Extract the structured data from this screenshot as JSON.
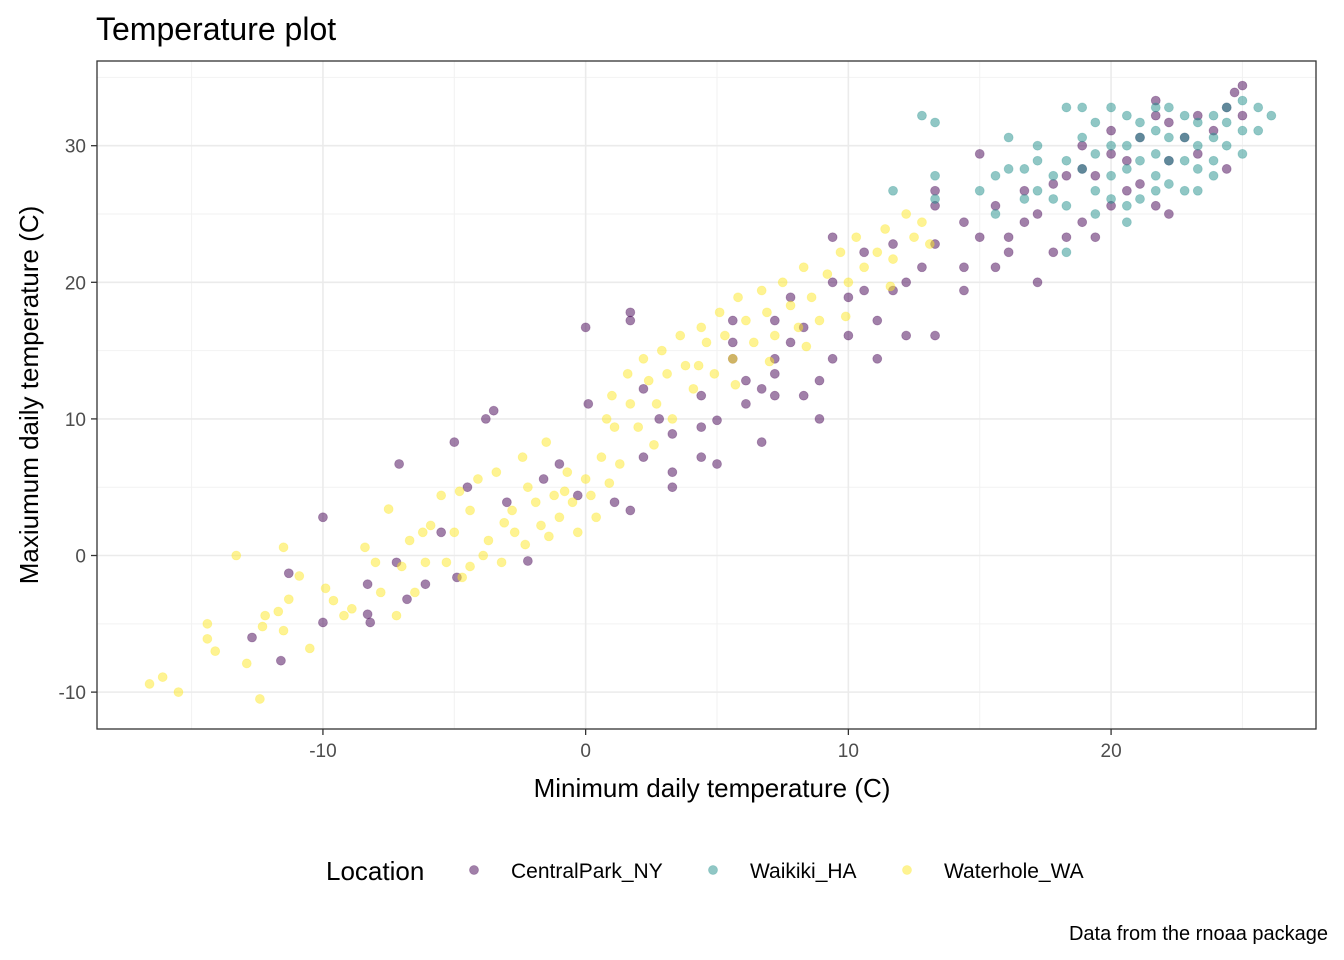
{
  "chart_data": {
    "type": "scatter",
    "title": "Temperature plot",
    "xlabel": "Minimum daily temperature (C)",
    "ylabel": "Maxiumum daily temperature (C)",
    "caption": "Data from the rnoaa package",
    "xlim": [
      -18.6,
      27.8
    ],
    "ylim": [
      -12.7,
      36.2
    ],
    "x_ticks": [
      -10,
      0,
      10,
      20
    ],
    "y_ticks": [
      -10,
      0,
      10,
      20,
      30
    ],
    "x_tick_labels": [
      "-10",
      "0",
      "10",
      "20"
    ],
    "y_tick_labels": [
      "-10",
      "0",
      "10",
      "20",
      "30"
    ],
    "grid": true,
    "point_alpha": 0.5,
    "legend": {
      "title": "Location",
      "position": "bottom"
    },
    "series": [
      {
        "name": "CentralPark_NY",
        "color": "#440154",
        "points": [
          [
            -12.7,
            -6.0
          ],
          [
            -11.6,
            -7.7
          ],
          [
            -11.3,
            -1.3
          ],
          [
            -10.0,
            2.8
          ],
          [
            -10.0,
            -4.9
          ],
          [
            -8.3,
            -4.3
          ],
          [
            -8.3,
            -2.1
          ],
          [
            -8.2,
            -4.9
          ],
          [
            -7.1,
            6.7
          ],
          [
            -7.2,
            -0.5
          ],
          [
            -6.8,
            -3.2
          ],
          [
            -6.1,
            -2.1
          ],
          [
            -5.5,
            1.7
          ],
          [
            -5.0,
            8.3
          ],
          [
            -4.9,
            -1.6
          ],
          [
            -4.5,
            5.0
          ],
          [
            -3.8,
            10.0
          ],
          [
            -3.5,
            10.6
          ],
          [
            -3.0,
            3.9
          ],
          [
            -2.2,
            -0.4
          ],
          [
            -1.6,
            5.6
          ],
          [
            -1.0,
            6.7
          ],
          [
            -0.3,
            4.4
          ],
          [
            0.0,
            16.7
          ],
          [
            0.1,
            11.1
          ],
          [
            1.7,
            17.8
          ],
          [
            1.7,
            17.2
          ],
          [
            1.7,
            3.3
          ],
          [
            1.1,
            3.9
          ],
          [
            2.2,
            7.2
          ],
          [
            2.2,
            12.2
          ],
          [
            2.8,
            10.0
          ],
          [
            3.3,
            8.9
          ],
          [
            3.3,
            5.0
          ],
          [
            3.3,
            6.1
          ],
          [
            4.4,
            11.7
          ],
          [
            4.4,
            9.4
          ],
          [
            4.4,
            7.2
          ],
          [
            5.0,
            9.9
          ],
          [
            5.0,
            6.7
          ],
          [
            5.6,
            14.4
          ],
          [
            5.6,
            15.6
          ],
          [
            5.6,
            17.2
          ],
          [
            6.1,
            12.8
          ],
          [
            6.1,
            11.1
          ],
          [
            6.7,
            12.2
          ],
          [
            6.7,
            8.3
          ],
          [
            7.2,
            17.2
          ],
          [
            7.2,
            14.4
          ],
          [
            7.2,
            13.3
          ],
          [
            7.2,
            11.7
          ],
          [
            7.8,
            15.6
          ],
          [
            7.8,
            18.9
          ],
          [
            8.3,
            16.7
          ],
          [
            8.3,
            11.7
          ],
          [
            8.9,
            12.8
          ],
          [
            8.9,
            10.0
          ],
          [
            9.4,
            14.4
          ],
          [
            9.4,
            20.0
          ],
          [
            9.4,
            23.3
          ],
          [
            10.0,
            16.1
          ],
          [
            10.0,
            18.9
          ],
          [
            10.6,
            22.2
          ],
          [
            10.6,
            19.4
          ],
          [
            11.1,
            17.2
          ],
          [
            11.1,
            14.4
          ],
          [
            11.7,
            19.4
          ],
          [
            11.7,
            22.8
          ],
          [
            12.2,
            20.0
          ],
          [
            12.2,
            16.1
          ],
          [
            12.8,
            21.1
          ],
          [
            13.3,
            22.8
          ],
          [
            13.3,
            25.6
          ],
          [
            13.3,
            26.7
          ],
          [
            13.3,
            16.1
          ],
          [
            14.4,
            24.4
          ],
          [
            14.4,
            21.1
          ],
          [
            14.4,
            19.4
          ],
          [
            15.0,
            23.3
          ],
          [
            15.0,
            29.4
          ],
          [
            15.6,
            21.1
          ],
          [
            15.6,
            25.6
          ],
          [
            16.1,
            23.3
          ],
          [
            16.1,
            22.2
          ],
          [
            16.7,
            24.4
          ],
          [
            16.7,
            26.7
          ],
          [
            17.2,
            20.0
          ],
          [
            17.2,
            25.0
          ],
          [
            17.8,
            22.2
          ],
          [
            17.8,
            27.2
          ],
          [
            18.3,
            27.8
          ],
          [
            18.3,
            23.3
          ],
          [
            18.9,
            28.3
          ],
          [
            18.9,
            24.4
          ],
          [
            18.9,
            30.0
          ],
          [
            19.4,
            23.3
          ],
          [
            19.4,
            27.8
          ],
          [
            20.0,
            25.6
          ],
          [
            20.0,
            31.1
          ],
          [
            20.0,
            29.4
          ],
          [
            20.6,
            28.9
          ],
          [
            20.6,
            26.7
          ],
          [
            21.1,
            30.6
          ],
          [
            21.1,
            27.2
          ],
          [
            21.7,
            25.6
          ],
          [
            21.7,
            32.2
          ],
          [
            21.7,
            33.3
          ],
          [
            22.2,
            28.9
          ],
          [
            22.2,
            31.7
          ],
          [
            22.2,
            25.0
          ],
          [
            22.8,
            30.6
          ],
          [
            23.3,
            32.2
          ],
          [
            23.3,
            29.4
          ],
          [
            23.9,
            31.1
          ],
          [
            24.4,
            32.8
          ],
          [
            24.4,
            28.3
          ],
          [
            25.0,
            34.4
          ],
          [
            25.0,
            32.2
          ],
          [
            24.7,
            33.9
          ]
        ]
      },
      {
        "name": "Waikiki_HA",
        "color": "#21908C",
        "points": [
          [
            12.8,
            32.2
          ],
          [
            13.3,
            31.7
          ],
          [
            13.3,
            27.8
          ],
          [
            11.7,
            26.7
          ],
          [
            13.3,
            26.1
          ],
          [
            15.0,
            26.7
          ],
          [
            15.6,
            27.8
          ],
          [
            15.6,
            25.0
          ],
          [
            16.1,
            28.3
          ],
          [
            16.1,
            30.6
          ],
          [
            16.7,
            28.3
          ],
          [
            16.7,
            26.1
          ],
          [
            17.2,
            28.9
          ],
          [
            17.2,
            26.7
          ],
          [
            17.2,
            30.0
          ],
          [
            17.8,
            27.8
          ],
          [
            17.8,
            26.1
          ],
          [
            18.3,
            28.9
          ],
          [
            18.3,
            32.8
          ],
          [
            18.3,
            25.6
          ],
          [
            18.3,
            22.2
          ],
          [
            18.9,
            32.8
          ],
          [
            18.9,
            30.6
          ],
          [
            18.9,
            28.3
          ],
          [
            19.4,
            31.7
          ],
          [
            19.4,
            29.4
          ],
          [
            19.4,
            26.7
          ],
          [
            19.4,
            25.0
          ],
          [
            20.0,
            32.8
          ],
          [
            20.0,
            30.0
          ],
          [
            20.0,
            27.8
          ],
          [
            20.0,
            26.1
          ],
          [
            20.6,
            32.2
          ],
          [
            20.6,
            30.0
          ],
          [
            20.6,
            28.3
          ],
          [
            20.6,
            25.6
          ],
          [
            20.6,
            24.4
          ],
          [
            21.1,
            31.7
          ],
          [
            21.1,
            30.6
          ],
          [
            21.1,
            28.9
          ],
          [
            21.1,
            26.1
          ],
          [
            21.7,
            32.8
          ],
          [
            21.7,
            31.1
          ],
          [
            21.7,
            29.4
          ],
          [
            21.7,
            27.8
          ],
          [
            21.7,
            26.7
          ],
          [
            22.2,
            32.8
          ],
          [
            22.2,
            30.6
          ],
          [
            22.2,
            28.9
          ],
          [
            22.2,
            27.2
          ],
          [
            22.8,
            32.2
          ],
          [
            22.8,
            30.6
          ],
          [
            22.8,
            28.9
          ],
          [
            22.8,
            26.7
          ],
          [
            23.3,
            31.7
          ],
          [
            23.3,
            30.0
          ],
          [
            23.3,
            28.3
          ],
          [
            23.3,
            26.7
          ],
          [
            23.9,
            32.2
          ],
          [
            23.9,
            30.6
          ],
          [
            23.9,
            28.9
          ],
          [
            23.9,
            27.8
          ],
          [
            24.4,
            31.7
          ],
          [
            24.4,
            30.0
          ],
          [
            24.4,
            32.8
          ],
          [
            25.0,
            33.3
          ],
          [
            25.0,
            31.1
          ],
          [
            25.0,
            29.4
          ],
          [
            25.6,
            32.8
          ],
          [
            25.6,
            31.1
          ],
          [
            26.1,
            32.2
          ]
        ]
      },
      {
        "name": "Waterhole_WA",
        "color": "#FDE725",
        "points": [
          [
            -16.6,
            -9.4
          ],
          [
            -16.1,
            -8.9
          ],
          [
            -15.5,
            -10.0
          ],
          [
            -14.4,
            -6.1
          ],
          [
            -14.4,
            -5.0
          ],
          [
            -14.1,
            -7.0
          ],
          [
            -13.3,
            0.0
          ],
          [
            -12.9,
            -7.9
          ],
          [
            -12.4,
            -10.5
          ],
          [
            -12.3,
            -5.2
          ],
          [
            -12.2,
            -4.4
          ],
          [
            -11.7,
            -4.1
          ],
          [
            -11.5,
            -5.5
          ],
          [
            -11.5,
            0.6
          ],
          [
            -11.3,
            -3.2
          ],
          [
            -10.9,
            -1.5
          ],
          [
            -10.5,
            -6.8
          ],
          [
            -9.9,
            -2.4
          ],
          [
            -9.6,
            -3.3
          ],
          [
            -9.2,
            -4.4
          ],
          [
            -8.9,
            -3.9
          ],
          [
            -8.4,
            0.6
          ],
          [
            -8.0,
            -0.5
          ],
          [
            -7.8,
            -2.7
          ],
          [
            -7.2,
            -4.4
          ],
          [
            -7.0,
            -0.8
          ],
          [
            -6.7,
            1.1
          ],
          [
            -6.5,
            -2.7
          ],
          [
            -6.1,
            -0.5
          ],
          [
            -5.9,
            2.2
          ],
          [
            -5.5,
            4.4
          ],
          [
            -5.3,
            -0.5
          ],
          [
            -5.0,
            1.7
          ],
          [
            -4.7,
            -1.6
          ],
          [
            -4.4,
            -0.8
          ],
          [
            -4.4,
            3.3
          ],
          [
            -4.1,
            5.6
          ],
          [
            -3.9,
            0.0
          ],
          [
            -3.7,
            1.1
          ],
          [
            -3.4,
            6.1
          ],
          [
            -3.2,
            -0.5
          ],
          [
            -2.8,
            3.3
          ],
          [
            -2.7,
            1.7
          ],
          [
            -2.4,
            7.2
          ],
          [
            -2.2,
            5.0
          ],
          [
            -1.9,
            3.9
          ],
          [
            -1.7,
            2.2
          ],
          [
            -1.5,
            8.3
          ],
          [
            -1.2,
            4.4
          ],
          [
            -1.0,
            2.8
          ],
          [
            -0.7,
            6.1
          ],
          [
            -0.5,
            3.9
          ],
          [
            -0.3,
            1.7
          ],
          [
            0.0,
            5.6
          ],
          [
            0.2,
            4.4
          ],
          [
            0.4,
            2.8
          ],
          [
            0.6,
            7.2
          ],
          [
            0.8,
            10.0
          ],
          [
            1.0,
            11.7
          ],
          [
            1.1,
            9.4
          ],
          [
            1.3,
            6.7
          ],
          [
            1.6,
            13.3
          ],
          [
            1.7,
            11.1
          ],
          [
            2.0,
            9.4
          ],
          [
            2.2,
            14.4
          ],
          [
            2.4,
            12.8
          ],
          [
            2.7,
            11.1
          ],
          [
            2.9,
            15.0
          ],
          [
            3.1,
            13.3
          ],
          [
            3.3,
            10.0
          ],
          [
            3.6,
            16.1
          ],
          [
            3.8,
            13.9
          ],
          [
            4.1,
            12.2
          ],
          [
            4.4,
            16.7
          ],
          [
            4.6,
            15.6
          ],
          [
            4.9,
            13.3
          ],
          [
            5.1,
            17.8
          ],
          [
            5.3,
            16.1
          ],
          [
            5.6,
            14.4
          ],
          [
            5.8,
            18.9
          ],
          [
            6.1,
            17.2
          ],
          [
            6.4,
            15.6
          ],
          [
            6.7,
            19.4
          ],
          [
            6.9,
            17.8
          ],
          [
            7.2,
            16.1
          ],
          [
            7.5,
            20.0
          ],
          [
            7.8,
            18.3
          ],
          [
            8.1,
            16.7
          ],
          [
            8.3,
            21.1
          ],
          [
            8.6,
            18.9
          ],
          [
            8.9,
            17.2
          ],
          [
            9.2,
            20.6
          ],
          [
            9.7,
            22.2
          ],
          [
            10.0,
            20.0
          ],
          [
            10.3,
            23.3
          ],
          [
            10.6,
            21.1
          ],
          [
            11.1,
            22.2
          ],
          [
            11.4,
            23.9
          ],
          [
            11.7,
            21.7
          ],
          [
            12.2,
            25.0
          ],
          [
            12.5,
            23.3
          ],
          [
            12.8,
            24.4
          ],
          [
            13.1,
            22.8
          ],
          [
            -7.5,
            3.4
          ],
          [
            -6.2,
            1.7
          ],
          [
            -4.8,
            4.7
          ],
          [
            -3.1,
            2.4
          ],
          [
            -2.3,
            0.8
          ],
          [
            -1.4,
            1.4
          ],
          [
            -0.8,
            4.7
          ],
          [
            0.9,
            5.3
          ],
          [
            2.6,
            8.1
          ],
          [
            4.3,
            13.9
          ],
          [
            5.7,
            12.5
          ],
          [
            7.0,
            14.2
          ],
          [
            8.4,
            15.3
          ],
          [
            9.9,
            17.5
          ],
          [
            11.6,
            19.7
          ]
        ]
      }
    ]
  }
}
